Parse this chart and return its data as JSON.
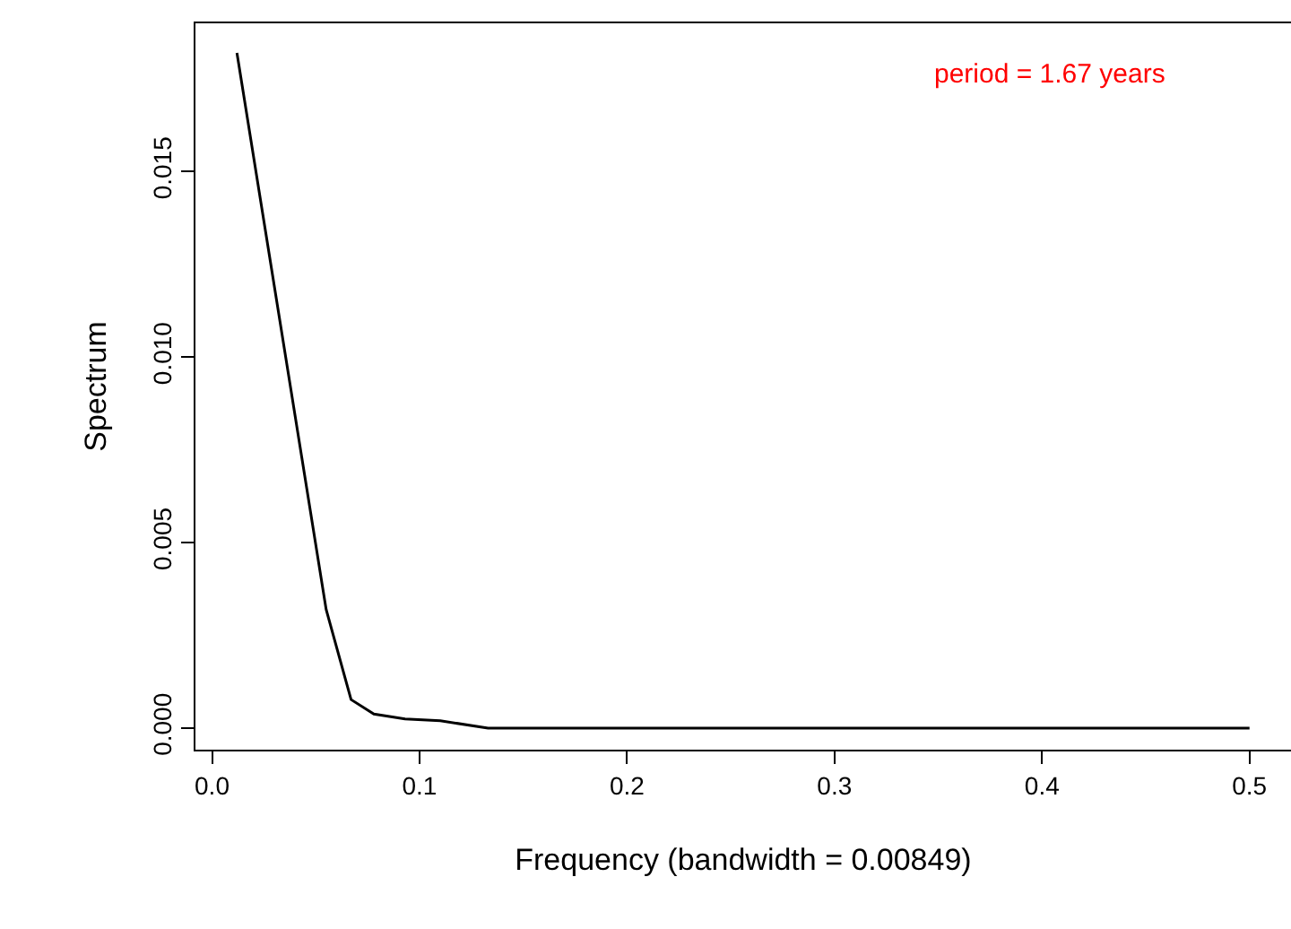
{
  "chart_data": {
    "type": "line",
    "xlabel": "Frequency (bandwidth = 0.00849)",
    "ylabel": "Spectrum",
    "x": [
      0.012,
      0.055,
      0.067,
      0.078,
      0.093,
      0.11,
      0.133,
      0.2,
      0.3,
      0.4,
      0.5
    ],
    "series": [
      {
        "color": "#000000",
        "values": [
          0.0182,
          0.0032,
          0.00077,
          0.00038,
          0.00025,
          0.0002,
          0,
          0,
          0,
          0,
          0
        ]
      }
    ],
    "xlim": [
      -0.008,
      0.52
    ],
    "xticks": [
      {
        "value": 0,
        "label": "0.0"
      },
      {
        "value": 0.1,
        "label": "0.1"
      },
      {
        "value": 0.2,
        "label": "0.2"
      },
      {
        "value": 0.3,
        "label": "0.3"
      },
      {
        "value": 0.4,
        "label": "0.4"
      },
      {
        "value": 0.5,
        "label": "0.5"
      }
    ],
    "ylim": [
      -0.00058,
      0.019
    ],
    "yticks": [
      {
        "value": 0,
        "label": "0.000"
      },
      {
        "value": 0.005,
        "label": "0.005"
      },
      {
        "value": 0.01,
        "label": "0.010"
      },
      {
        "value": 0.015,
        "label": "0.015"
      }
    ],
    "marker": "none",
    "line_style": "solid",
    "annotations": [
      "period = 1.67 years"
    ]
  }
}
